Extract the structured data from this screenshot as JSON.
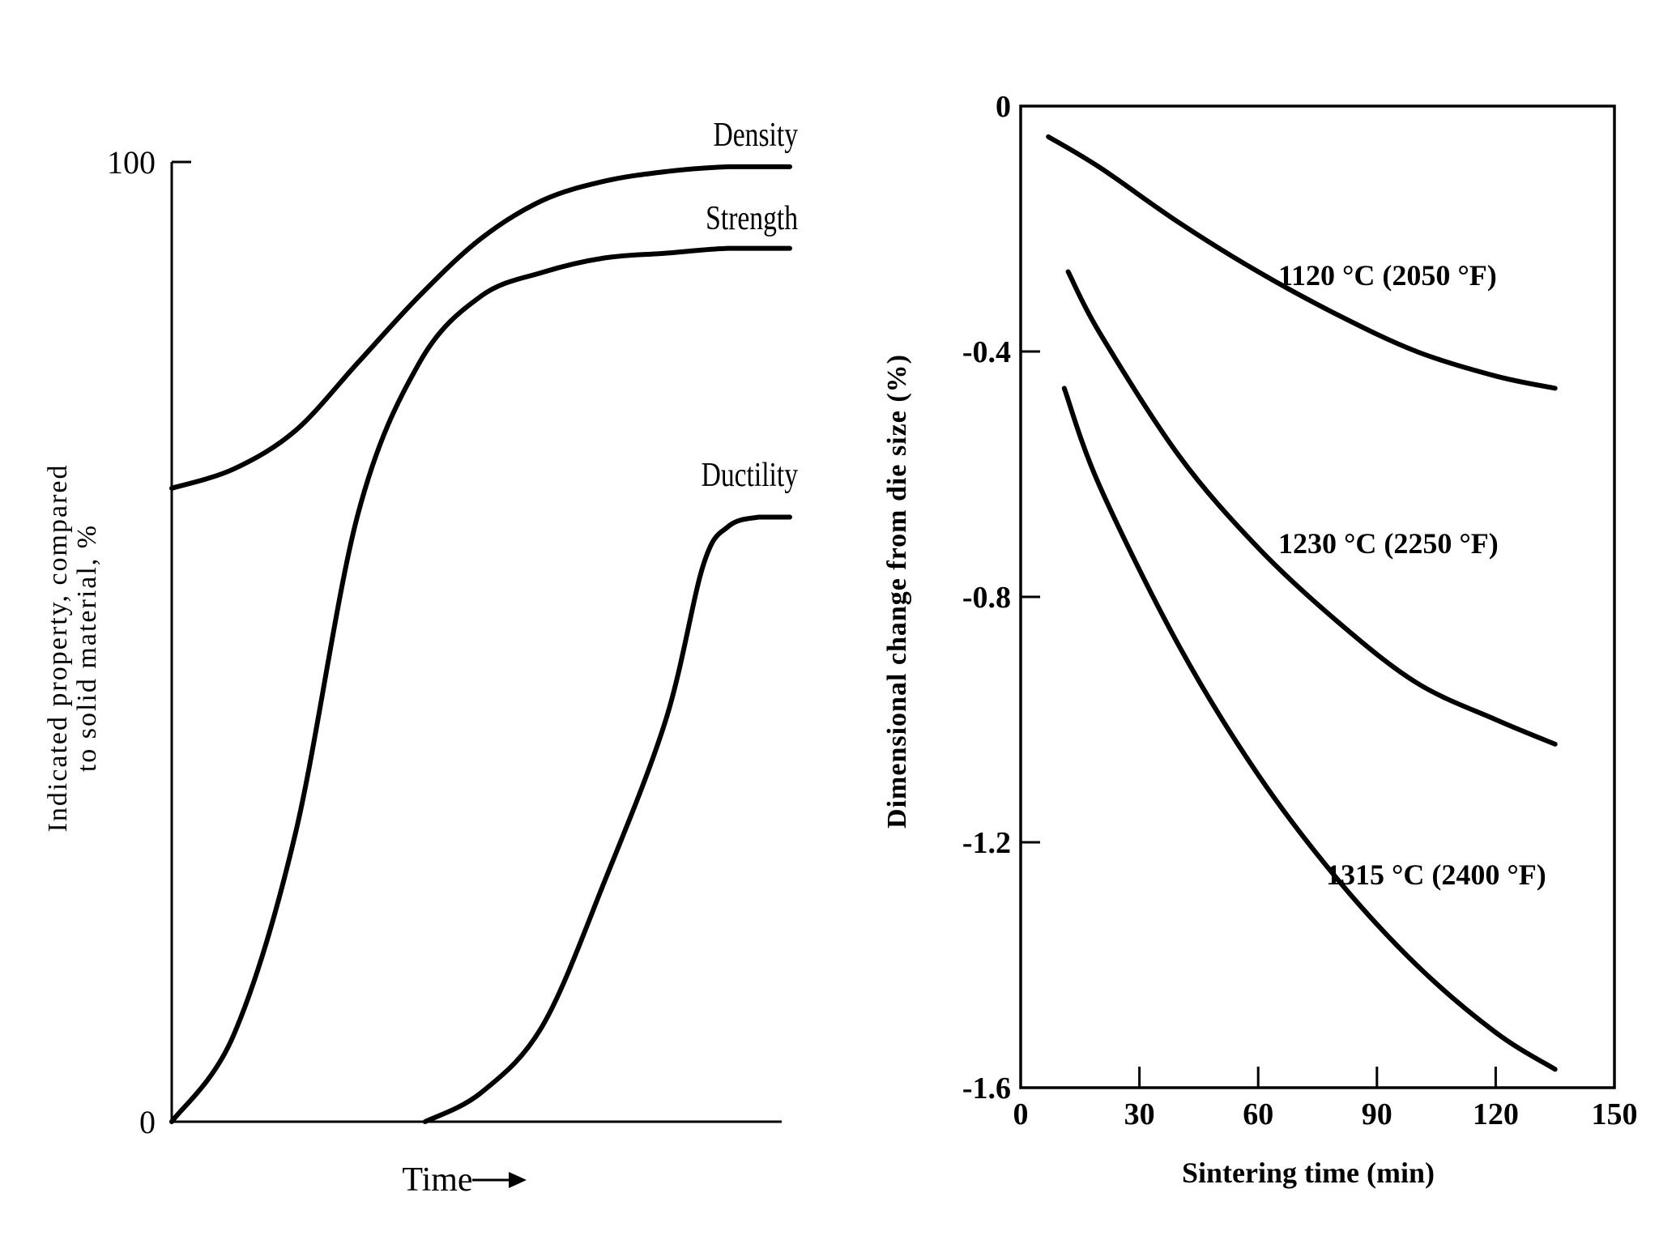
{
  "chart_data": [
    {
      "type": "line",
      "title": "",
      "xlabel": "Time",
      "xlabel_arrow": "→",
      "ylabel_line1": "Indicated property, compared",
      "ylabel_line2": "to solid material, %",
      "yticks": [
        "100",
        "0"
      ],
      "ylim": [
        0,
        100
      ],
      "xlim": [
        0,
        1
      ],
      "grid": false,
      "legend": "none (curves labeled directly)",
      "series": [
        {
          "name": "Density",
          "x": [
            0,
            0.1,
            0.2,
            0.3,
            0.4,
            0.5,
            0.6,
            0.7,
            0.8,
            0.9,
            1.0
          ],
          "y": [
            66,
            68,
            72,
            79,
            86,
            92,
            96,
            98,
            99,
            99.5,
            99.5
          ]
        },
        {
          "name": "Strength",
          "x": [
            0,
            0.1,
            0.2,
            0.3,
            0.4,
            0.5,
            0.6,
            0.7,
            0.8,
            0.9,
            1.0
          ],
          "y": [
            0,
            9,
            30,
            63,
            79,
            86,
            88.5,
            90,
            90.5,
            91,
            91
          ]
        },
        {
          "name": "Ductility",
          "x": [
            0.41,
            0.5,
            0.6,
            0.7,
            0.8,
            0.86,
            0.9,
            0.95,
            1.0
          ],
          "y": [
            0,
            3,
            10,
            25,
            42,
            58,
            62,
            63,
            63
          ]
        }
      ]
    },
    {
      "type": "line",
      "title": "",
      "xlabel": "Sintering time (min)",
      "ylabel": "Dimensional change from die size (%)",
      "xticks": [
        "0",
        "30",
        "60",
        "90",
        "120",
        "150"
      ],
      "yticks": [
        "0",
        "-0.4",
        "-0.8",
        "-1.2",
        "-1.6"
      ],
      "xlim": [
        0,
        150
      ],
      "ylim": [
        -1.6,
        0
      ],
      "grid": false,
      "legend": "none (curves labeled directly)",
      "series": [
        {
          "name": "1120 °C (2050 °F)",
          "x": [
            7,
            20,
            40,
            60,
            80,
            100,
            120,
            135
          ],
          "y": [
            -0.05,
            -0.1,
            -0.19,
            -0.27,
            -0.34,
            -0.4,
            -0.44,
            -0.46
          ]
        },
        {
          "name": "1230 °C (2250 °F)",
          "x": [
            12,
            20,
            40,
            60,
            80,
            100,
            120,
            135
          ],
          "y": [
            -0.27,
            -0.37,
            -0.57,
            -0.72,
            -0.84,
            -0.94,
            -1.0,
            -1.04
          ]
        },
        {
          "name": "1315 °C (2400 °F)",
          "x": [
            11,
            20,
            40,
            60,
            80,
            100,
            120,
            135
          ],
          "y": [
            -0.46,
            -0.62,
            -0.88,
            -1.09,
            -1.26,
            -1.4,
            -1.51,
            -1.57
          ]
        }
      ]
    }
  ]
}
